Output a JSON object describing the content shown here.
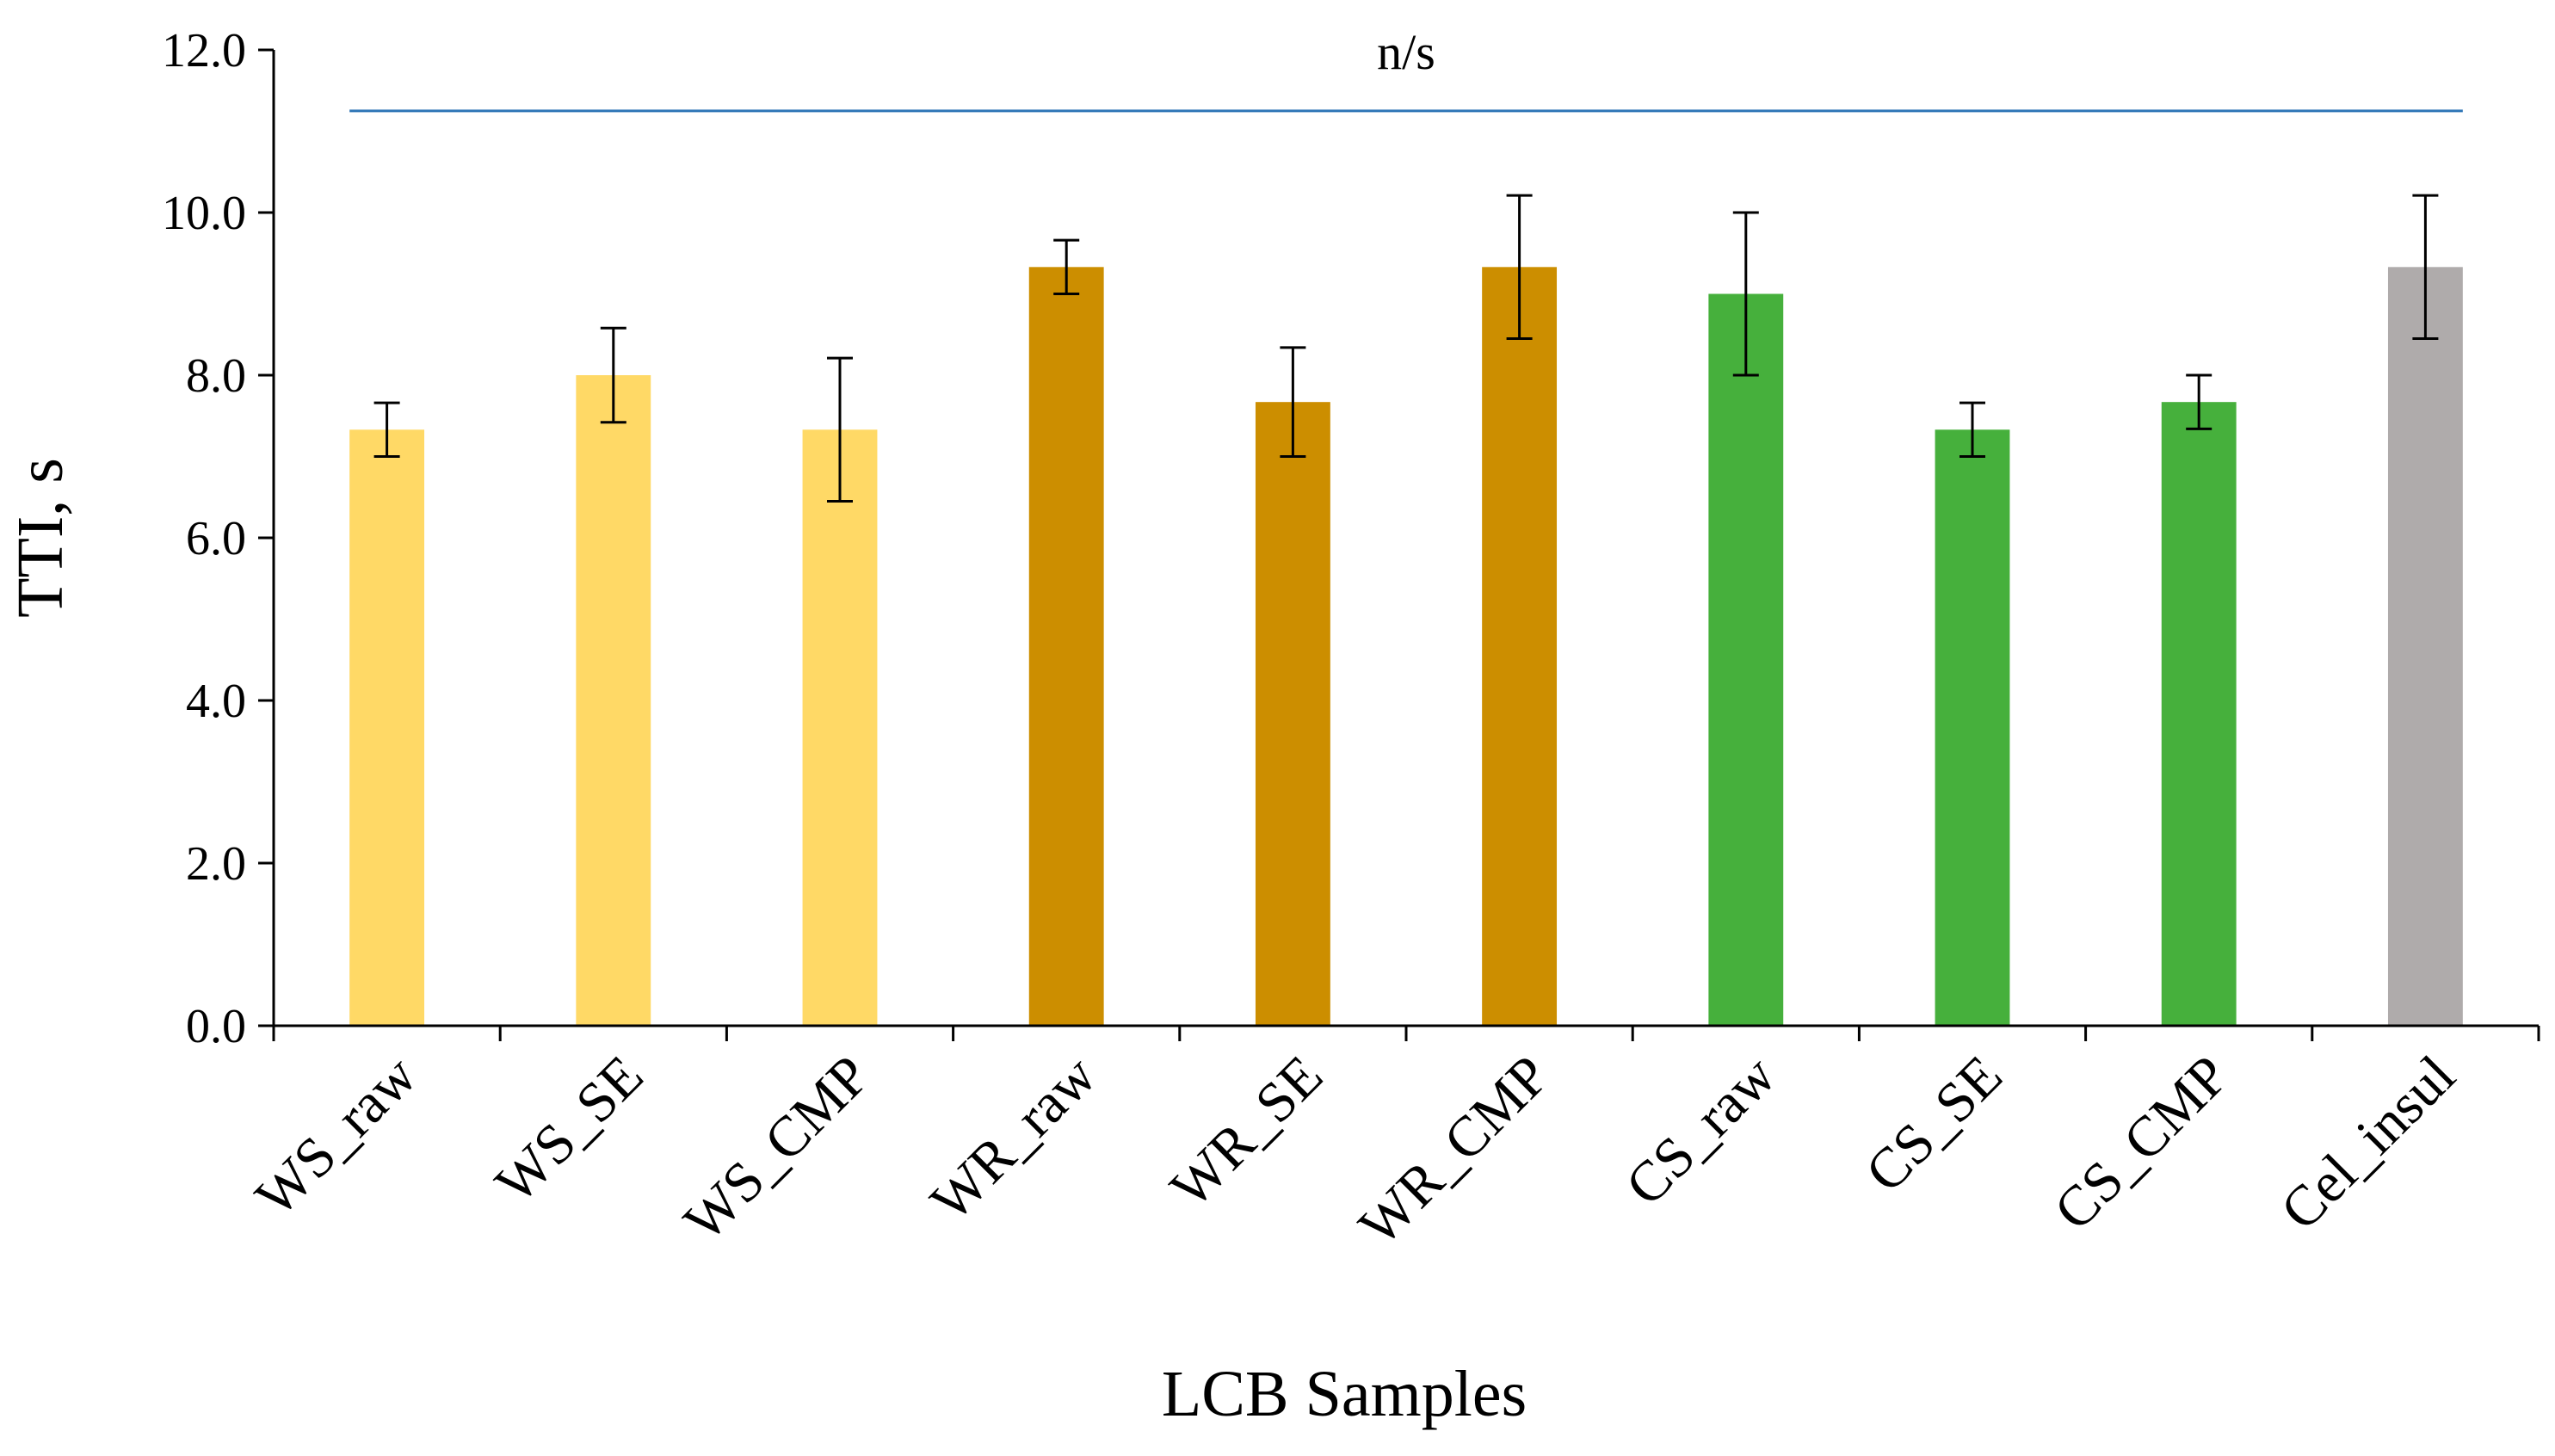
{
  "chart_data": {
    "type": "bar",
    "title": "",
    "xlabel": "LCB Samples",
    "ylabel": "TTI, s",
    "ylim": [
      0,
      12
    ],
    "yticks": [
      "0.0",
      "2.0",
      "4.0",
      "6.0",
      "8.0",
      "10.0",
      "12.0"
    ],
    "categories": [
      "WS_raw",
      "WS_SE",
      "WS_CMP",
      "WR_raw",
      "WR_SE",
      "WR_CMP",
      "CS_raw",
      "CS_SE",
      "CS_CMP",
      "Cel_insul"
    ],
    "values": [
      7.33,
      8.0,
      7.33,
      9.33,
      7.67,
      9.33,
      9.0,
      7.33,
      7.67,
      9.33
    ],
    "errors": [
      0.33,
      0.58,
      0.88,
      0.33,
      0.67,
      0.88,
      1.0,
      0.33,
      0.33,
      0.88
    ],
    "bar_colors": [
      "#FFD966",
      "#FFD966",
      "#FFD966",
      "#CC8E00",
      "#CC8E00",
      "#CC8E00",
      "#46B03C",
      "#46B03C",
      "#46B03C",
      "#AFABAB"
    ],
    "significance": {
      "label": "n/s",
      "y": 11.25,
      "from": "WS_raw",
      "to": "Cel_insul",
      "color": "#2E75B6"
    },
    "grid": false,
    "legend": "none"
  }
}
